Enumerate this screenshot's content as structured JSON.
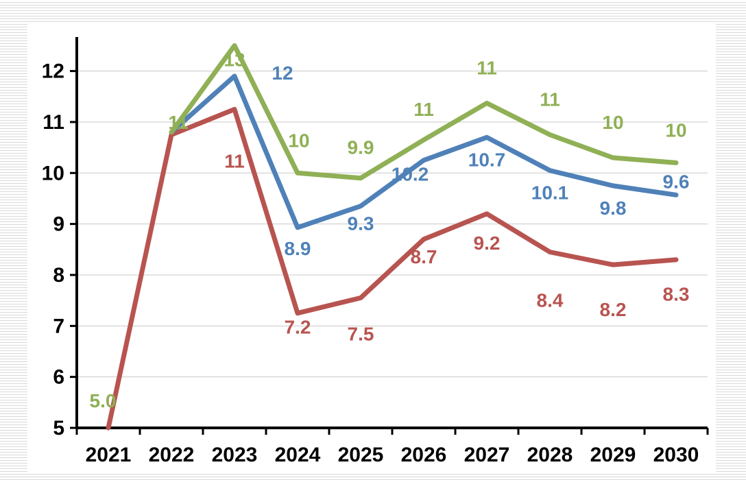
{
  "chart_data": {
    "type": "line",
    "title": "",
    "xlabel": "",
    "ylabel": "",
    "x": [
      "2021",
      "2022",
      "2023",
      "2024",
      "2025",
      "2026",
      "2027",
      "2028",
      "2029",
      "2030"
    ],
    "ylim": [
      5,
      12.6
    ],
    "yticks": [
      5,
      6,
      7,
      8,
      9,
      10,
      11,
      12
    ],
    "grid": true,
    "legend": "none",
    "series": [
      {
        "color": "#8fb055",
        "values": [
          null,
          10.8,
          12.5,
          10.0,
          9.9,
          10.65,
          11.37,
          10.75,
          10.3,
          10.2
        ],
        "labels": [
          "5.0",
          "11",
          "13",
          "10",
          "9.9",
          "11",
          "11",
          "11",
          "10",
          "10"
        ]
      },
      {
        "color": "#4f81b8",
        "values": [
          null,
          10.8,
          11.9,
          8.93,
          9.35,
          10.25,
          10.7,
          10.05,
          9.75,
          9.57
        ],
        "labels": [
          "",
          "",
          "12",
          "8.9",
          "9.3",
          "10.2",
          "10.7",
          "10.1",
          "9.8",
          "9.6"
        ]
      },
      {
        "color": "#b85450",
        "values": [
          5.0,
          10.75,
          11.25,
          7.25,
          7.55,
          8.7,
          9.2,
          8.45,
          8.2,
          8.3
        ],
        "labels": [
          "",
          "",
          "11",
          "7.2",
          "7.5",
          "8.7",
          "9.2",
          "8.4",
          "8.2",
          "8.3"
        ]
      }
    ]
  }
}
